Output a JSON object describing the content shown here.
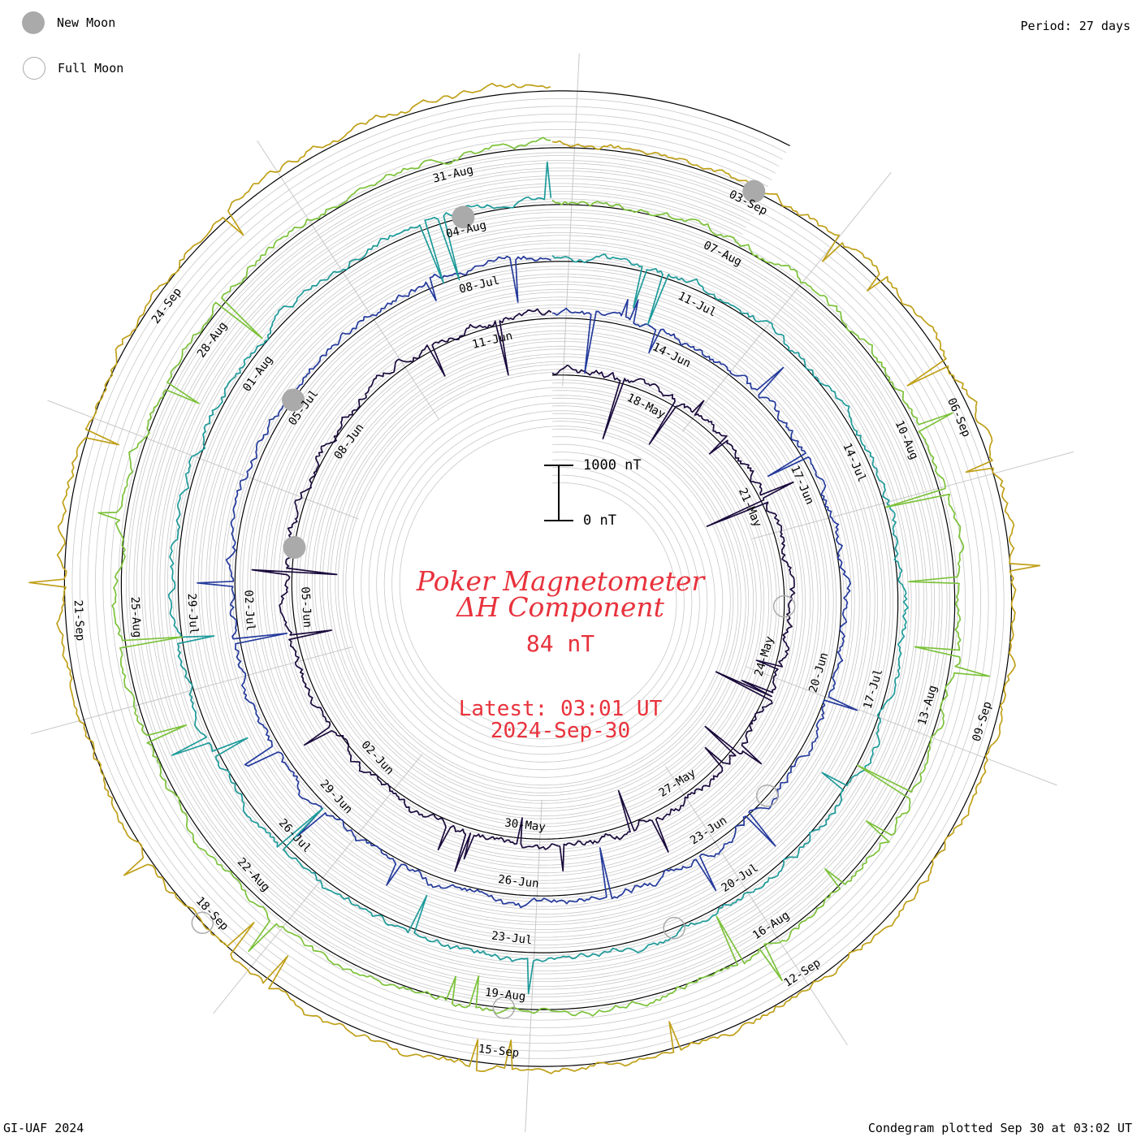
{
  "legend": {
    "new_moon": "New Moon",
    "full_moon": "Full Moon"
  },
  "period": "Period: 27 days",
  "footer": {
    "left": "GI-UAF 2024",
    "right": "Condegram plotted Sep 30 at 03:02 UT"
  },
  "title": {
    "line1": "Poker Magnetometer",
    "line2": "ΔH Component"
  },
  "current_value": "84 nT",
  "latest": {
    "time": "Latest: 03:01 UT",
    "date": "2024-Sep-30"
  },
  "scale": {
    "top": "1000 nT",
    "bottom": "0 nT"
  },
  "colors": {
    "title": "#e8323c",
    "moon": "#aaaaaa",
    "grid": "#c8c8c8"
  },
  "chart_data": {
    "type": "line",
    "subtype": "condegram spiral",
    "period_days": 27,
    "start": "2024-05-16",
    "end": "2024-09-30",
    "units": "nT",
    "scale_nT": [
      0,
      1000
    ],
    "rotations": [
      {
        "color": "#1a0a3c",
        "labels": [
          {
            "day": 2,
            "text": "18-May"
          },
          {
            "day": 5,
            "text": "21-May"
          },
          {
            "day": 8,
            "text": "24-May"
          },
          {
            "day": 11,
            "text": "27-May"
          },
          {
            "day": 14,
            "text": "30-May"
          },
          {
            "day": 17,
            "text": "02-Jun"
          },
          {
            "day": 20,
            "text": "05-Jun"
          },
          {
            "day": 23,
            "text": "08-Jun"
          },
          {
            "day": 26,
            "text": "11-Jun"
          }
        ]
      },
      {
        "color": "#243a9c",
        "labels": [
          {
            "day": 2,
            "text": "14-Jun"
          },
          {
            "day": 5,
            "text": "17-Jun"
          },
          {
            "day": 8,
            "text": "20-Jun"
          },
          {
            "day": 11,
            "text": "23-Jun"
          },
          {
            "day": 14,
            "text": "26-Jun"
          },
          {
            "day": 17,
            "text": "29-Jun"
          },
          {
            "day": 20,
            "text": "02-Jul"
          },
          {
            "day": 23,
            "text": "05-Jul"
          },
          {
            "day": 26,
            "text": "08-Jul"
          }
        ]
      },
      {
        "color": "#1e9a9a",
        "labels": [
          {
            "day": 2,
            "text": "11-Jul"
          },
          {
            "day": 5,
            "text": "14-Jul"
          },
          {
            "day": 8,
            "text": "17-Jul"
          },
          {
            "day": 11,
            "text": "20-Jul"
          },
          {
            "day": 14,
            "text": "23-Jul"
          },
          {
            "day": 17,
            "text": "26-Jul"
          },
          {
            "day": 20,
            "text": "29-Jul"
          },
          {
            "day": 23,
            "text": "01-Aug"
          },
          {
            "day": 26,
            "text": "04-Aug"
          }
        ]
      },
      {
        "color": "#7cc23a",
        "labels": [
          {
            "day": 2,
            "text": "07-Aug"
          },
          {
            "day": 5,
            "text": "10-Aug"
          },
          {
            "day": 8,
            "text": "13-Aug"
          },
          {
            "day": 11,
            "text": "16-Aug"
          },
          {
            "day": 14,
            "text": "19-Aug"
          },
          {
            "day": 17,
            "text": "22-Aug"
          },
          {
            "day": 20,
            "text": "25-Aug"
          },
          {
            "day": 23,
            "text": "28-Aug"
          },
          {
            "day": 26,
            "text": "31-Aug"
          }
        ]
      },
      {
        "color": "#c0a018",
        "labels": [
          {
            "day": 2,
            "text": "03-Sep"
          },
          {
            "day": 5,
            "text": "06-Sep"
          },
          {
            "day": 8,
            "text": "09-Sep"
          },
          {
            "day": 11,
            "text": "12-Sep"
          },
          {
            "day": 14,
            "text": "15-Sep"
          },
          {
            "day": 17,
            "text": "18-Sep"
          },
          {
            "day": 20,
            "text": "21-Sep"
          },
          {
            "day": 23,
            "text": "24-Sep"
          }
        ]
      }
    ],
    "moon_phases": {
      "new_moon": [
        "2024-06-06",
        "2024-07-05",
        "2024-08-04",
        "2024-09-03"
      ],
      "full_moon": [
        "2024-05-23",
        "2024-06-22",
        "2024-07-21",
        "2024-08-19",
        "2024-09-18"
      ]
    }
  }
}
